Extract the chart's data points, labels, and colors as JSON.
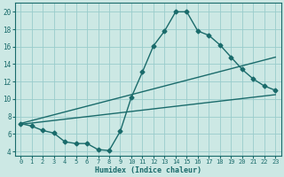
{
  "xlabel": "Humidex (Indice chaleur)",
  "ylabel": "",
  "xlim": [
    -0.5,
    23.5
  ],
  "ylim": [
    3.5,
    21
  ],
  "bg_color": "#cce8e4",
  "grid_color": "#99cccc",
  "line_color": "#1a6b6b",
  "xticks": [
    0,
    1,
    2,
    3,
    4,
    5,
    6,
    7,
    8,
    9,
    10,
    11,
    12,
    13,
    14,
    15,
    16,
    17,
    18,
    19,
    20,
    21,
    22,
    23
  ],
  "yticks": [
    4,
    6,
    8,
    10,
    12,
    14,
    16,
    18,
    20
  ],
  "curve_x": [
    0,
    1,
    2,
    3,
    4,
    5,
    6,
    7,
    8,
    9,
    10,
    11,
    12,
    13,
    14,
    15,
    16,
    17,
    18,
    19,
    20,
    21,
    22,
    23
  ],
  "curve_y": [
    7.2,
    6.9,
    6.4,
    6.1,
    5.1,
    4.9,
    4.9,
    4.2,
    4.1,
    6.3,
    10.2,
    13.1,
    16.1,
    17.8,
    20.0,
    20.0,
    17.8,
    17.3,
    16.2,
    14.8,
    13.4,
    12.3,
    11.5,
    11.0
  ],
  "line1_x": [
    0,
    23
  ],
  "line1_y": [
    7.1,
    10.5
  ],
  "line2_x": [
    0,
    23
  ],
  "line2_y": [
    7.2,
    14.8
  ],
  "marker_size": 2.5,
  "linewidth": 1.0,
  "tick_fontsize": 5.0,
  "xlabel_fontsize": 6.0
}
